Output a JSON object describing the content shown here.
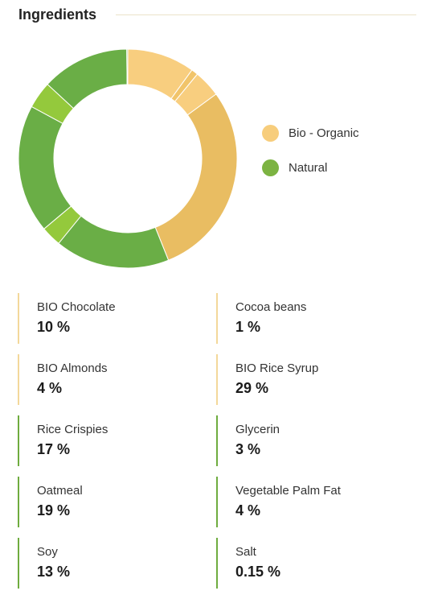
{
  "header": {
    "title": "Ingredients"
  },
  "legend": [
    {
      "label": "Bio - Organic",
      "color": "#f7cd7c"
    },
    {
      "label": "Natural",
      "color": "#7cb342"
    }
  ],
  "chart_data": {
    "type": "pie",
    "donut": true,
    "title": "Ingredients",
    "legend_position": "right",
    "series": [
      {
        "name": "Bio - Organic",
        "color": "#f7cd7c"
      },
      {
        "name": "Natural",
        "color": "#7cb342"
      }
    ],
    "slices": [
      {
        "label": "BIO Chocolate",
        "value": 10,
        "group": "Bio - Organic",
        "color": "#f8ce7f"
      },
      {
        "label": "Cocoa beans",
        "value": 1,
        "group": "Bio - Organic",
        "color": "#f1c46a"
      },
      {
        "label": "BIO Almonds",
        "value": 4,
        "group": "Bio - Organic",
        "color": "#f8ce7f"
      },
      {
        "label": "BIO Rice Syrup",
        "value": 29,
        "group": "Bio - Organic",
        "color": "#e9bd62"
      },
      {
        "label": "Rice Crispies",
        "value": 17,
        "group": "Natural",
        "color": "#6aae46"
      },
      {
        "label": "Glycerin",
        "value": 3,
        "group": "Natural",
        "color": "#94c93c"
      },
      {
        "label": "Oatmeal",
        "value": 19,
        "group": "Natural",
        "color": "#6aae46"
      },
      {
        "label": "Vegetable Palm Fat",
        "value": 4,
        "group": "Natural",
        "color": "#94c93c"
      },
      {
        "label": "Soy",
        "value": 13,
        "group": "Natural",
        "color": "#6aae46"
      },
      {
        "label": "Salt",
        "value": 0.15,
        "group": "Natural",
        "color": "#6aae46"
      }
    ]
  },
  "ingredients": [
    {
      "name": "BIO Chocolate",
      "percent": "10 %",
      "group": "organic"
    },
    {
      "name": "Cocoa beans",
      "percent": "1 %",
      "group": "organic"
    },
    {
      "name": "BIO Almonds",
      "percent": "4 %",
      "group": "organic"
    },
    {
      "name": "BIO Rice Syrup",
      "percent": "29 %",
      "group": "organic"
    },
    {
      "name": "Rice Crispies",
      "percent": "17 %",
      "group": "natural"
    },
    {
      "name": "Glycerin",
      "percent": "3 %",
      "group": "natural"
    },
    {
      "name": "Oatmeal",
      "percent": "19 %",
      "group": "natural"
    },
    {
      "name": "Vegetable Palm Fat",
      "percent": "4 %",
      "group": "natural"
    },
    {
      "name": "Soy",
      "percent": "13 %",
      "group": "natural"
    },
    {
      "name": "Salt",
      "percent": "0.15 %",
      "group": "natural"
    }
  ]
}
